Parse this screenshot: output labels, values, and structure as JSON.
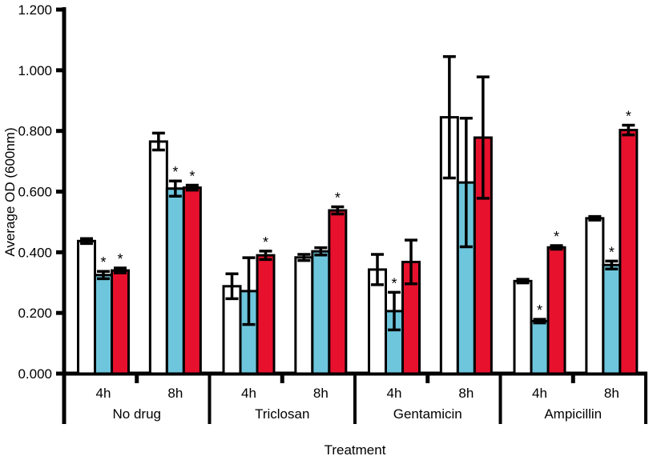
{
  "figure": {
    "background": "#ffffff",
    "axis_color": "#000000"
  },
  "chart_data": {
    "type": "bar",
    "title": "",
    "xlabel": "Treatment",
    "ylabel": "Average OD (600nm)",
    "ylim": [
      0,
      1.2
    ],
    "ytick_step": 0.2,
    "ytick_format_decimals": 3,
    "ytick_labels": [
      "0.000",
      "0.200",
      "0.400",
      "0.600",
      "0.800",
      "1.000",
      "1.200"
    ],
    "grid": false,
    "legend": "none",
    "error_bars": "mean_plus_minus_sd_capped",
    "significance_marker": "*",
    "series_colors": {
      "white": "#FFFFFF",
      "blue": "#6EC6DC",
      "red": "#E8112D"
    },
    "series_order": [
      "white",
      "blue",
      "red"
    ],
    "groups": [
      {
        "label": "No drug",
        "clusters": [
          {
            "label": "4h",
            "bars": [
              {
                "series": "white",
                "value": 0.437,
                "error": 0.008,
                "significant": false
              },
              {
                "series": "blue",
                "value": 0.325,
                "error": 0.012,
                "significant": true
              },
              {
                "series": "red",
                "value": 0.34,
                "error": 0.008,
                "significant": true
              }
            ]
          },
          {
            "label": "8h",
            "bars": [
              {
                "series": "white",
                "value": 0.765,
                "error": 0.028,
                "significant": false
              },
              {
                "series": "blue",
                "value": 0.61,
                "error": 0.025,
                "significant": true
              },
              {
                "series": "red",
                "value": 0.613,
                "error": 0.008,
                "significant": true
              }
            ]
          }
        ]
      },
      {
        "label": "Triclosan",
        "clusters": [
          {
            "label": "4h",
            "bars": [
              {
                "series": "white",
                "value": 0.288,
                "error": 0.041,
                "significant": false
              },
              {
                "series": "blue",
                "value": 0.272,
                "error": 0.11,
                "significant": false
              },
              {
                "series": "red",
                "value": 0.39,
                "error": 0.014,
                "significant": true
              }
            ]
          },
          {
            "label": "8h",
            "bars": [
              {
                "series": "white",
                "value": 0.383,
                "error": 0.01,
                "significant": false
              },
              {
                "series": "blue",
                "value": 0.403,
                "error": 0.012,
                "significant": false
              },
              {
                "series": "red",
                "value": 0.538,
                "error": 0.012,
                "significant": true
              }
            ]
          }
        ]
      },
      {
        "label": "Gentamicin",
        "clusters": [
          {
            "label": "4h",
            "bars": [
              {
                "series": "white",
                "value": 0.343,
                "error": 0.05,
                "significant": false
              },
              {
                "series": "blue",
                "value": 0.206,
                "error": 0.062,
                "significant": true
              },
              {
                "series": "red",
                "value": 0.368,
                "error": 0.072,
                "significant": false
              }
            ]
          },
          {
            "label": "8h",
            "bars": [
              {
                "series": "white",
                "value": 0.845,
                "error": 0.2,
                "significant": false
              },
              {
                "series": "blue",
                "value": 0.63,
                "error": 0.212,
                "significant": false
              },
              {
                "series": "red",
                "value": 0.778,
                "error": 0.2,
                "significant": false
              }
            ]
          }
        ]
      },
      {
        "label": "Ampicillin",
        "clusters": [
          {
            "label": "4h",
            "bars": [
              {
                "series": "white",
                "value": 0.305,
                "error": 0.006,
                "significant": false
              },
              {
                "series": "blue",
                "value": 0.173,
                "error": 0.006,
                "significant": true
              },
              {
                "series": "red",
                "value": 0.416,
                "error": 0.006,
                "significant": true
              }
            ]
          },
          {
            "label": "8h",
            "bars": [
              {
                "series": "white",
                "value": 0.512,
                "error": 0.006,
                "significant": false
              },
              {
                "series": "blue",
                "value": 0.358,
                "error": 0.013,
                "significant": true
              },
              {
                "series": "red",
                "value": 0.803,
                "error": 0.016,
                "significant": true
              }
            ]
          }
        ]
      }
    ]
  }
}
